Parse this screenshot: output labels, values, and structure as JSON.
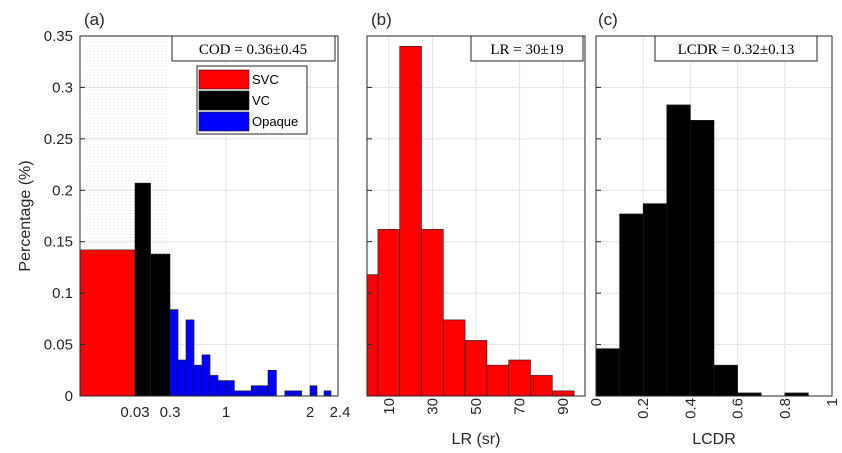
{
  "chart_data": [
    {
      "type": "bar",
      "panel": "(a)",
      "ylabel": "Percentage (%)",
      "ylim": [
        0,
        0.35
      ],
      "yticks": [
        "0",
        "0.05",
        "0.1",
        "0.15",
        "0.2",
        "0.25",
        "0.3",
        "0.35"
      ],
      "xticks": [
        "0.03",
        "0.3",
        "1",
        "2",
        "2.4"
      ],
      "annotation": "COD = 0.36±0.45",
      "legend_position": "top-right",
      "series": [
        {
          "name": "SVC",
          "color": "#ff0000",
          "bins": [
            [
              0.0,
              0.03,
              0.142
            ]
          ]
        },
        {
          "name": "VC",
          "color": "#000000",
          "bins": [
            [
              0.03,
              0.15,
              0.207
            ],
            [
              0.15,
              0.3,
              0.138
            ]
          ]
        },
        {
          "name": "Opaque",
          "color": "#0000ff",
          "bins": [
            [
              0.3,
              0.4,
              0.084
            ],
            [
              0.4,
              0.5,
              0.035
            ],
            [
              0.5,
              0.6,
              0.074
            ],
            [
              0.6,
              0.7,
              0.03
            ],
            [
              0.7,
              0.8,
              0.04
            ],
            [
              0.8,
              0.9,
              0.02
            ],
            [
              0.9,
              1.0,
              0.015
            ],
            [
              1.0,
              1.1,
              0.015
            ],
            [
              1.1,
              1.2,
              0.005
            ],
            [
              1.2,
              1.3,
              0.005
            ],
            [
              1.3,
              1.4,
              0.01
            ],
            [
              1.4,
              1.5,
              0.01
            ],
            [
              1.5,
              1.6,
              0.025
            ],
            [
              1.6,
              1.7,
              0.0
            ],
            [
              1.7,
              1.8,
              0.005
            ],
            [
              1.8,
              1.9,
              0.005
            ],
            [
              1.9,
              2.0,
              0.0
            ],
            [
              2.0,
              2.1,
              0.01
            ],
            [
              2.1,
              2.2,
              0.0
            ],
            [
              2.2,
              2.3,
              0.005
            ]
          ]
        }
      ]
    },
    {
      "type": "bar",
      "panel": "(b)",
      "xlabel": "LR (sr)",
      "xlim": [
        0,
        100
      ],
      "ylim": [
        0,
        0.35
      ],
      "xticks": [
        "10",
        "30",
        "50",
        "70",
        "90"
      ],
      "annotation": "LR = 30±19",
      "color": "#ff0000",
      "bins": [
        [
          0,
          5,
          0.118
        ],
        [
          5,
          15,
          0.162
        ],
        [
          15,
          25,
          0.34
        ],
        [
          25,
          35,
          0.162
        ],
        [
          35,
          45,
          0.074
        ],
        [
          45,
          55,
          0.054
        ],
        [
          55,
          65,
          0.03
        ],
        [
          65,
          75,
          0.035
        ],
        [
          75,
          85,
          0.02
        ],
        [
          85,
          95,
          0.005
        ]
      ]
    },
    {
      "type": "bar",
      "panel": "(c)",
      "xlabel": "LCDR",
      "xlim": [
        0,
        1
      ],
      "ylim": [
        0,
        0.35
      ],
      "xticks": [
        "0",
        "0.2",
        "0.4",
        "0.6",
        "0.8",
        "1"
      ],
      "annotation": "LCDR = 0.32±0.13",
      "color": "#000000",
      "bins": [
        [
          0.0,
          0.1,
          0.046
        ],
        [
          0.1,
          0.2,
          0.177
        ],
        [
          0.2,
          0.3,
          0.187
        ],
        [
          0.3,
          0.4,
          0.283
        ],
        [
          0.4,
          0.5,
          0.268
        ],
        [
          0.5,
          0.6,
          0.03
        ],
        [
          0.6,
          0.7,
          0.003
        ],
        [
          0.7,
          0.8,
          0.0
        ],
        [
          0.8,
          0.9,
          0.003
        ]
      ]
    }
  ]
}
